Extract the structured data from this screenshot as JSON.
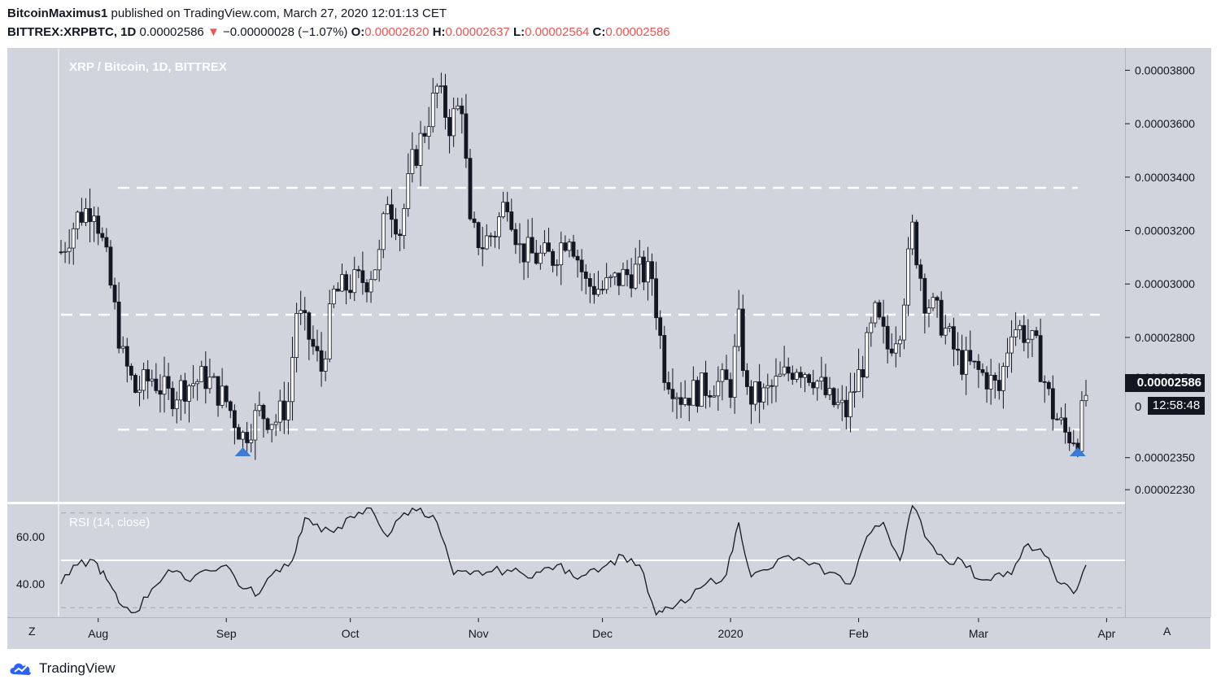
{
  "header": {
    "author": "BitcoinMaximus1",
    "published_text": "published on TradingView.com, March 27, 2020 12:01:13 CET",
    "symbol": "BITTREX:XRPBTC, 1D",
    "last": "0.00002586",
    "change": "−0.00000028 (−1.07%)",
    "open_label": "O:",
    "open": "0.00002620",
    "high_label": "H:",
    "high": "0.00002637",
    "low_label": "L:",
    "low": "0.00002564",
    "close_label": "C:",
    "close": "0.00002586",
    "down_arrow": "▼"
  },
  "chart": {
    "title": "XRP / Bitcoin, 1D, BITTREX",
    "price_label": "0.00002586",
    "countdown": "12:58:48",
    "cursor_tick": "0",
    "price_ticks": [
      "0.00003800",
      "0.00003600",
      "0.00003400",
      "0.00003200",
      "0.00003000",
      "0.00002800",
      "0.00002650",
      "0.00002350",
      "0.00002230"
    ],
    "time_ticks": [
      "Aug",
      "Sep",
      "Oct",
      "Nov",
      "Dec",
      "2020",
      "Feb",
      "Mar",
      "Apr"
    ]
  },
  "rsi": {
    "title": "RSI (14, close)",
    "ticks": [
      "60.00",
      "40.00"
    ]
  },
  "axis_controls": {
    "z": "Z",
    "a": "A"
  },
  "footer": {
    "brand": "TradingView"
  },
  "colors": {
    "panel_bg": "#d1d4dc",
    "candle": "#131722",
    "dashed_level": "#ffffff",
    "marker": "#3a7bd5",
    "down": "#ef5350"
  },
  "chart_data": [
    {
      "type": "candlestick",
      "title": "XRP / Bitcoin, 1D, BITTREX",
      "x_range": [
        "2019-07-23",
        "2020-03-27"
      ],
      "ylim": [
        2.2e-05,
        3.85e-05
      ],
      "horizontal_levels": [
        3.36e-05,
        2.885e-05,
        2.455e-05
      ],
      "markers": [
        {
          "date": "2019-09-05",
          "shape": "triangle-up",
          "color": "#3a7bd5"
        },
        {
          "date": "2020-03-25",
          "shape": "triangle-up",
          "color": "#3a7bd5"
        }
      ],
      "close_path": [
        [
          "2019-07-23",
          3.12e-05
        ],
        [
          "2019-07-27",
          3.25e-05
        ],
        [
          "2019-07-31",
          3.3e-05
        ],
        [
          "2019-08-03",
          3.08e-05
        ],
        [
          "2019-08-05",
          2.9e-05
        ],
        [
          "2019-08-07",
          2.72e-05
        ],
        [
          "2019-08-10",
          2.6e-05
        ],
        [
          "2019-08-14",
          2.65e-05
        ],
        [
          "2019-08-18",
          2.58e-05
        ],
        [
          "2019-08-22",
          2.62e-05
        ],
        [
          "2019-08-27",
          2.65e-05
        ],
        [
          "2019-09-01",
          2.56e-05
        ],
        [
          "2019-09-05",
          2.43e-05
        ],
        [
          "2019-09-09",
          2.52e-05
        ],
        [
          "2019-09-13",
          2.49e-05
        ],
        [
          "2019-09-16",
          2.56e-05
        ],
        [
          "2019-09-18",
          2.9e-05
        ],
        [
          "2019-09-21",
          2.8e-05
        ],
        [
          "2019-09-24",
          2.68e-05
        ],
        [
          "2019-09-27",
          2.96e-05
        ],
        [
          "2019-10-01",
          3e-05
        ],
        [
          "2019-10-05",
          3.02e-05
        ],
        [
          "2019-10-08",
          3.1e-05
        ],
        [
          "2019-10-10",
          3.33e-05
        ],
        [
          "2019-10-13",
          3.2e-05
        ],
        [
          "2019-10-16",
          3.45e-05
        ],
        [
          "2019-10-19",
          3.58e-05
        ],
        [
          "2019-10-22",
          3.73e-05
        ],
        [
          "2019-10-25",
          3.6e-05
        ],
        [
          "2019-10-28",
          3.68e-05
        ],
        [
          "2019-10-30",
          3.2e-05
        ],
        [
          "2019-11-02",
          3.15e-05
        ],
        [
          "2019-11-05",
          3.2e-05
        ],
        [
          "2019-11-08",
          3.33e-05
        ],
        [
          "2019-11-11",
          3.13e-05
        ],
        [
          "2019-11-15",
          3.1e-05
        ],
        [
          "2019-11-19",
          3.1e-05
        ],
        [
          "2019-11-23",
          3.2e-05
        ],
        [
          "2019-11-27",
          3e-05
        ],
        [
          "2019-12-01",
          2.98e-05
        ],
        [
          "2019-12-05",
          3.02e-05
        ],
        [
          "2019-12-09",
          3.05e-05
        ],
        [
          "2019-12-13",
          3.03e-05
        ],
        [
          "2019-12-16",
          2.68e-05
        ],
        [
          "2019-12-20",
          2.58e-05
        ],
        [
          "2019-12-24",
          2.6e-05
        ],
        [
          "2019-12-28",
          2.63e-05
        ],
        [
          "2020-01-01",
          2.62e-05
        ],
        [
          "2020-01-03",
          2.85e-05
        ],
        [
          "2020-01-05",
          2.58e-05
        ],
        [
          "2020-01-09",
          2.58e-05
        ],
        [
          "2020-01-13",
          2.64e-05
        ],
        [
          "2020-01-17",
          2.7e-05
        ],
        [
          "2020-01-21",
          2.66e-05
        ],
        [
          "2020-01-25",
          2.56e-05
        ],
        [
          "2020-01-29",
          2.52e-05
        ],
        [
          "2020-02-02",
          2.7e-05
        ],
        [
          "2020-02-05",
          2.88e-05
        ],
        [
          "2020-02-08",
          2.76e-05
        ],
        [
          "2020-02-11",
          2.85e-05
        ],
        [
          "2020-02-14",
          3.2e-05
        ],
        [
          "2020-02-17",
          2.95e-05
        ],
        [
          "2020-02-21",
          2.86e-05
        ],
        [
          "2020-02-25",
          2.72e-05
        ],
        [
          "2020-02-29",
          2.68e-05
        ],
        [
          "2020-03-03",
          2.65e-05
        ],
        [
          "2020-03-06",
          2.6e-05
        ],
        [
          "2020-03-09",
          2.85e-05
        ],
        [
          "2020-03-12",
          2.82e-05
        ],
        [
          "2020-03-15",
          2.75e-05
        ],
        [
          "2020-03-19",
          2.52e-05
        ],
        [
          "2020-03-22",
          2.44e-05
        ],
        [
          "2020-03-25",
          2.43e-05
        ],
        [
          "2020-03-27",
          2.586e-05
        ]
      ]
    },
    {
      "type": "line",
      "title": "RSI (14, close)",
      "ylim": [
        27,
        73
      ],
      "horizontal_levels": [
        50,
        70,
        30
      ],
      "x": [
        "2019-07-23",
        "2019-07-27",
        "2019-07-31",
        "2019-08-03",
        "2019-08-06",
        "2019-08-10",
        "2019-08-14",
        "2019-08-18",
        "2019-08-22",
        "2019-08-27",
        "2019-09-01",
        "2019-09-05",
        "2019-09-09",
        "2019-09-13",
        "2019-09-17",
        "2019-09-20",
        "2019-09-24",
        "2019-09-28",
        "2019-10-02",
        "2019-10-06",
        "2019-10-10",
        "2019-10-14",
        "2019-10-18",
        "2019-10-22",
        "2019-10-26",
        "2019-10-30",
        "2019-11-03",
        "2019-11-08",
        "2019-11-12",
        "2019-11-16",
        "2019-11-20",
        "2019-11-24",
        "2019-11-28",
        "2019-12-02",
        "2019-12-06",
        "2019-12-10",
        "2019-12-14",
        "2019-12-17",
        "2019-12-21",
        "2019-12-26",
        "2019-12-31",
        "2020-01-03",
        "2020-01-06",
        "2020-01-10",
        "2020-01-15",
        "2020-01-20",
        "2020-01-25",
        "2020-01-30",
        "2020-02-03",
        "2020-02-07",
        "2020-02-11",
        "2020-02-14",
        "2020-02-18",
        "2020-02-22",
        "2020-02-26",
        "2020-03-01",
        "2020-03-05",
        "2020-03-09",
        "2020-03-13",
        "2020-03-17",
        "2020-03-21",
        "2020-03-24",
        "2020-03-27"
      ],
      "values": [
        40,
        48,
        50,
        42,
        32,
        28,
        38,
        46,
        42,
        46,
        48,
        38,
        36,
        46,
        50,
        68,
        62,
        64,
        68,
        72,
        60,
        70,
        72,
        66,
        44,
        44,
        45,
        46,
        44,
        45,
        48,
        43,
        46,
        48,
        52,
        48,
        26,
        30,
        32,
        40,
        44,
        66,
        43,
        46,
        52,
        48,
        45,
        40,
        60,
        66,
        50,
        73,
        58,
        50,
        50,
        42,
        44,
        44,
        57,
        52,
        40,
        36,
        48
      ]
    }
  ]
}
